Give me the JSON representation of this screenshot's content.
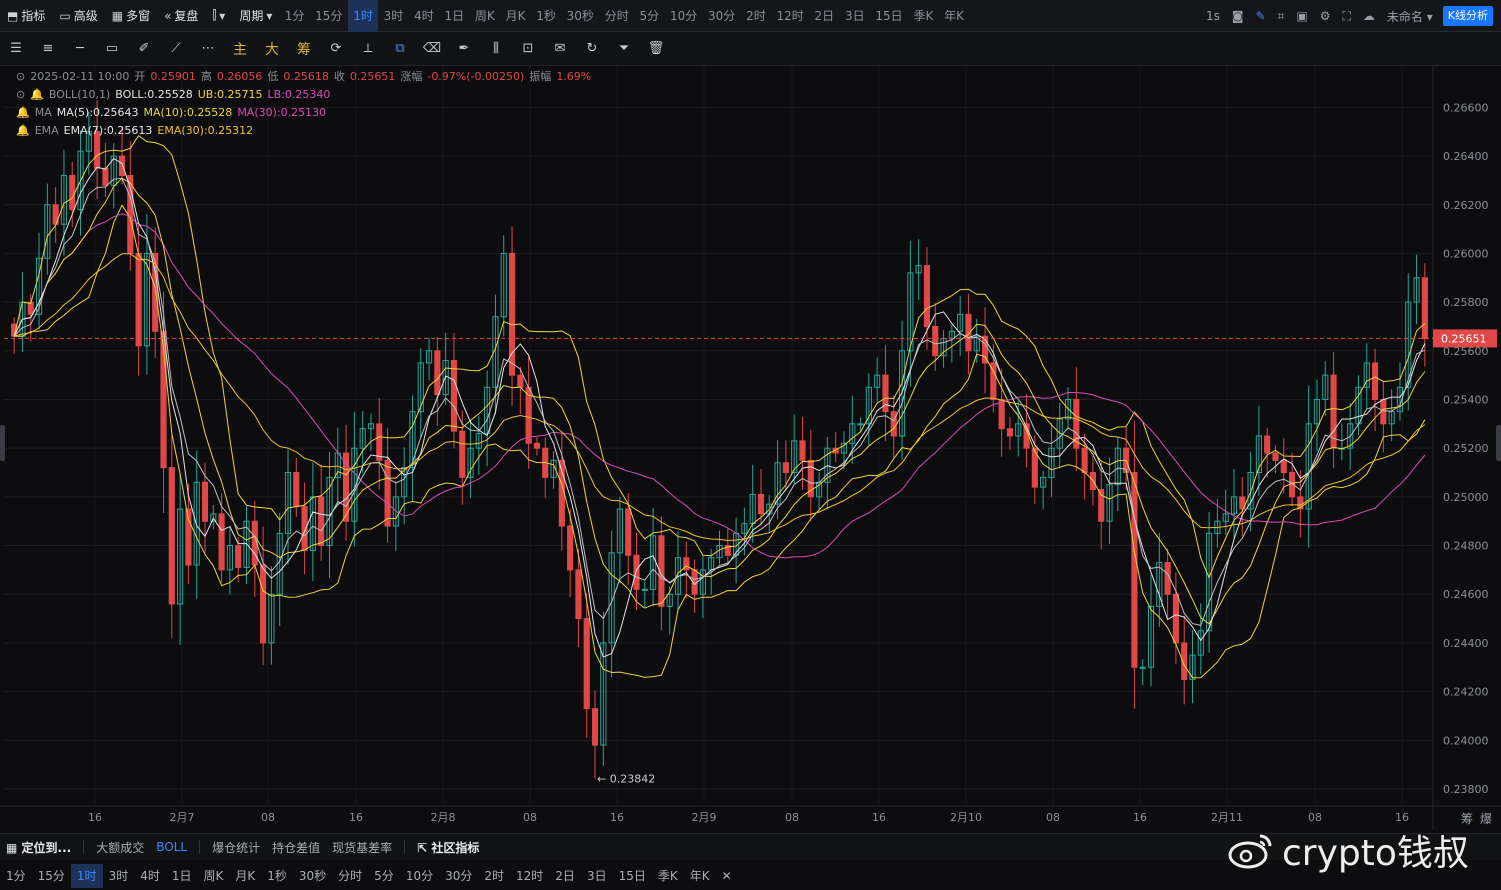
{
  "topbar": {
    "indicators_label": "指标",
    "advanced_label": "高级",
    "multiwindow_label": "多窗",
    "restore_label": "复盘",
    "period_label": "周期",
    "timeframes": [
      "1分",
      "15分",
      "1时",
      "3时",
      "4时",
      "1日",
      "周K",
      "月K",
      "1秒",
      "30秒",
      "分时",
      "5分",
      "10分",
      "30分",
      "2时",
      "12时",
      "2日",
      "3日",
      "15日",
      "季K",
      "年K"
    ],
    "active_timeframe": "1时",
    "refresh_label": "1s",
    "layout_name": "未命名",
    "kline_analysis_label": "K线分析"
  },
  "drawing_toolbar": {
    "main_label": "主",
    "big_label": "大",
    "chip_label": "筹"
  },
  "legend": {
    "ohlc_date": "2025-02-11 10:00",
    "open_label": "开",
    "open": "0.25901",
    "high_label": "高",
    "high": "0.26056",
    "low_label": "低",
    "low": "0.25618",
    "close_label": "收",
    "close": "0.25651",
    "change_label": "涨幅",
    "change": "-0.97%(-0.00250)",
    "amplitude_label": "振幅",
    "amplitude": "1.69%",
    "boll_name": "BOLL(10,1)",
    "boll_mid": "BOLL:0.25528",
    "boll_ub": "UB:0.25715",
    "boll_lb": "LB:0.25340",
    "ma_name": "MA",
    "ma5": "MA(5):0.25643",
    "ma10": "MA(10):0.25528",
    "ma30": "MA(30):0.25130",
    "ema_name": "EMA",
    "ema7": "EMA(7):0.25613",
    "ema30": "EMA(30):0.25312"
  },
  "chart_data": {
    "type": "candlestick",
    "symbol_interval": "1时",
    "y_axis_ticks": [
      "0.26600",
      "0.26400",
      "0.26200",
      "0.26000",
      "0.25800",
      "0.25600",
      "0.25400",
      "0.25200",
      "0.25000",
      "0.24800",
      "0.24600",
      "0.24400",
      "0.24200",
      "0.24000",
      "0.23800"
    ],
    "ylim": [
      0.2373,
      0.2677
    ],
    "x_axis_ticks": [
      "16",
      "2月7",
      "08",
      "16",
      "2月8",
      "08",
      "16",
      "2月9",
      "08",
      "16",
      "2月10",
      "08",
      "16",
      "2月11",
      "08",
      "16"
    ],
    "current_price": "0.25651",
    "low_marker": "← 0.23842",
    "low_marker_value": 0.23842,
    "colors": {
      "up": "#26a69a",
      "down": "#e04848",
      "boll": "#f0d43a",
      "ma5": "#e6e6e6",
      "ma10": "#f0d43a",
      "ma30": "#d94bb9",
      "ema7": "#bfbfbf",
      "ema30": "#f0c030"
    },
    "candles_close": [
      0.2566,
      0.258,
      0.2575,
      0.2598,
      0.262,
      0.2612,
      0.2632,
      0.2618,
      0.2642,
      0.265,
      0.2635,
      0.2628,
      0.264,
      0.2632,
      0.26,
      0.2562,
      0.26,
      0.2568,
      0.2512,
      0.2456,
      0.2495,
      0.2472,
      0.2506,
      0.249,
      0.2493,
      0.247,
      0.248,
      0.2471,
      0.249,
      0.2472,
      0.244,
      0.246,
      0.2485,
      0.251,
      0.2496,
      0.2478,
      0.25,
      0.248,
      0.2508,
      0.2518,
      0.249,
      0.252,
      0.2528,
      0.253,
      0.2515,
      0.2488,
      0.25,
      0.2512,
      0.2535,
      0.2555,
      0.256,
      0.2542,
      0.2556,
      0.2527,
      0.2508,
      0.252,
      0.2526,
      0.2545,
      0.2574,
      0.26,
      0.255,
      0.2545,
      0.2522,
      0.252,
      0.2508,
      0.2515,
      0.2488,
      0.247,
      0.245,
      0.2413,
      0.2398,
      0.244,
      0.2477,
      0.2495,
      0.2476,
      0.2462,
      0.2462,
      0.2484,
      0.2455,
      0.246,
      0.2475,
      0.247,
      0.246,
      0.247,
      0.2475,
      0.248,
      0.2476,
      0.2485,
      0.2489,
      0.2501,
      0.2493,
      0.2497,
      0.2514,
      0.251,
      0.2523,
      0.2515,
      0.25,
      0.2506,
      0.252,
      0.2518,
      0.2522,
      0.253,
      0.253,
      0.2545,
      0.255,
      0.2535,
      0.2525,
      0.256,
      0.2592,
      0.2595,
      0.257,
      0.2558,
      0.2565,
      0.2568,
      0.2575,
      0.256,
      0.2566,
      0.2555,
      0.254,
      0.2528,
      0.2525,
      0.253,
      0.252,
      0.2504,
      0.2508,
      0.252,
      0.2532,
      0.254,
      0.252,
      0.251,
      0.2503,
      0.249,
      0.2505,
      0.252,
      0.251,
      0.243,
      0.243,
      0.2455,
      0.2473,
      0.246,
      0.244,
      0.2425,
      0.2435,
      0.2445,
      0.2485,
      0.249,
      0.2493,
      0.25,
      0.2495,
      0.251,
      0.2525,
      0.2518,
      0.2515,
      0.251,
      0.25,
      0.2495,
      0.253,
      0.254,
      0.255,
      0.252,
      0.252,
      0.253,
      0.2545,
      0.2555,
      0.254,
      0.253,
      0.2535,
      0.2545,
      0.258,
      0.259,
      0.2565
    ]
  },
  "bottombar": {
    "locate_label": "定位到...",
    "items": [
      "大额成交",
      "BOLL",
      "爆仓统计",
      "持仓差值",
      "现货基差率",
      "社区指标"
    ],
    "active_item": "BOLL",
    "timeframes": [
      "1分",
      "15分",
      "1时",
      "3时",
      "4时",
      "1日",
      "周K",
      "月K",
      "1秒",
      "30秒",
      "分时",
      "5分",
      "10分",
      "30分",
      "2时",
      "12时",
      "2日",
      "3日",
      "15日",
      "季K",
      "年K"
    ],
    "active_timeframe": "1时",
    "corner_labels": [
      "筹",
      "爆"
    ]
  },
  "watermark": {
    "text": "crypto钱叔"
  }
}
